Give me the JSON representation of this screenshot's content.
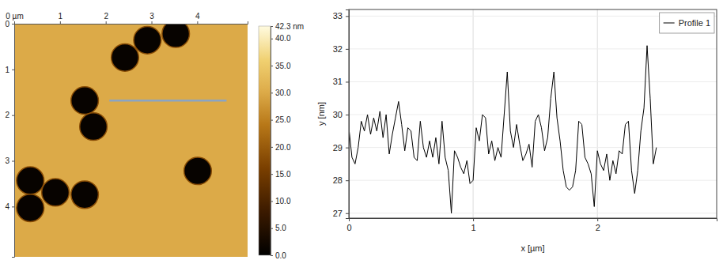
{
  "chart_data": [
    {
      "type": "afm_image",
      "xlim": [
        0,
        5.1
      ],
      "ylim": [
        0,
        5.1
      ],
      "xticks": [
        {
          "value": 0,
          "label": "0 µm"
        },
        1,
        2,
        3,
        4
      ],
      "yticks": [
        0,
        1,
        2,
        3,
        4
      ],
      "background": 30,
      "pits": {
        "x": [
          2.42,
          2.91,
          3.53,
          1.54,
          1.73,
          4.01,
          0.35,
          0.35,
          0.9,
          1.54
        ],
        "y": [
          0.74,
          0.36,
          0.22,
          1.68,
          2.25,
          3.22,
          3.43,
          4.03,
          3.69,
          3.74
        ],
        "r": [
          0.3,
          0.3,
          0.3,
          0.3,
          0.3,
          0.3,
          0.3,
          0.3,
          0.3,
          0.3
        ],
        "z": [
          1,
          1,
          1,
          1,
          1,
          1,
          1,
          1,
          1,
          1
        ]
      },
      "profile_line": {
        "x": [
          2.08,
          4.64
        ],
        "y": [
          1.68,
          1.68
        ],
        "color": "#8aa4c4"
      },
      "colorbar": {
        "range": [
          0,
          42.3
        ],
        "ticks": [
          {
            "value": 42.3,
            "label": "42.3 nm"
          },
          {
            "value": 40,
            "label": "40.0"
          },
          {
            "value": 35,
            "label": "35.0"
          },
          {
            "value": 30,
            "label": "30.0"
          },
          {
            "value": 25,
            "label": "25.0"
          },
          {
            "value": 20,
            "label": "20.0"
          },
          {
            "value": 15,
            "label": "15.0"
          },
          {
            "value": 10,
            "label": "10.0"
          },
          {
            "value": 5,
            "label": "5.0"
          },
          {
            "value": 0,
            "label": "0.0"
          }
        ]
      }
    },
    {
      "type": "line",
      "xlabel": "x [µm]",
      "ylabel": "y [nm]",
      "x": [
        0,
        0.025,
        0.05,
        0.075,
        0.1,
        0.125,
        0.15,
        0.175,
        0.2,
        0.225,
        0.25,
        0.275,
        0.3,
        0.325,
        0.35,
        0.375,
        0.4,
        0.425,
        0.45,
        0.475,
        0.5,
        0.525,
        0.55,
        0.575,
        0.6,
        0.625,
        0.65,
        0.675,
        0.7,
        0.725,
        0.75,
        0.775,
        0.8,
        0.825,
        0.85,
        0.875,
        0.9,
        0.925,
        0.95,
        0.975,
        1,
        1.025,
        1.05,
        1.075,
        1.1,
        1.125,
        1.15,
        1.175,
        1.2,
        1.225,
        1.25,
        1.275,
        1.3,
        1.325,
        1.35,
        1.375,
        1.4,
        1.425,
        1.45,
        1.475,
        1.5,
        1.525,
        1.55,
        1.575,
        1.6,
        1.625,
        1.65,
        1.675,
        1.7,
        1.725,
        1.75,
        1.775,
        1.8,
        1.825,
        1.85,
        1.875,
        1.9,
        1.925,
        1.95,
        1.975,
        2,
        2.025,
        2.05,
        2.075,
        2.1,
        2.125,
        2.15,
        2.175,
        2.2,
        2.225,
        2.25,
        2.275,
        2.3,
        2.325,
        2.35,
        2.375,
        2.4,
        2.425,
        2.45,
        2.475
      ],
      "series": [
        {
          "name": "Profile 1",
          "color": "#000000",
          "values": [
            29.6,
            28.7,
            28.5,
            29.0,
            29.8,
            29.5,
            30.0,
            29.4,
            29.9,
            29.5,
            30.1,
            29.3,
            30.0,
            28.8,
            29.4,
            29.9,
            30.4,
            29.7,
            28.9,
            29.6,
            29.5,
            28.7,
            28.6,
            29.8,
            29.0,
            28.7,
            29.2,
            28.7,
            29.3,
            28.5,
            29.8,
            28.7,
            28.3,
            27.0,
            28.9,
            28.7,
            28.4,
            28.2,
            28.6,
            27.9,
            28.0,
            29.6,
            29.2,
            30.0,
            29.9,
            28.8,
            29.2,
            28.6,
            29.0,
            28.7,
            30.0,
            31.3,
            29.5,
            29.0,
            29.7,
            29.1,
            28.6,
            28.8,
            29.1,
            28.4,
            29.8,
            30.0,
            29.6,
            28.9,
            29.3,
            30.5,
            31.3,
            29.9,
            29.2,
            28.3,
            27.8,
            27.7,
            27.8,
            28.3,
            29.8,
            29.7,
            28.7,
            28.5,
            28.2,
            27.2,
            28.9,
            28.5,
            28.3,
            28.8,
            28.0,
            28.6,
            28.2,
            28.9,
            28.8,
            29.7,
            29.8,
            28.3,
            27.6,
            28.3,
            29.5,
            30.2,
            32.1,
            30.5,
            28.5,
            29.0
          ]
        }
      ],
      "xlim": [
        0,
        2.96
      ],
      "ylim": [
        26.85,
        33.2
      ],
      "xticks": [
        0,
        1,
        2
      ],
      "yticks": [
        27,
        28,
        29,
        30,
        31,
        32,
        33
      ],
      "grid": true,
      "legend": "upper right"
    }
  ]
}
